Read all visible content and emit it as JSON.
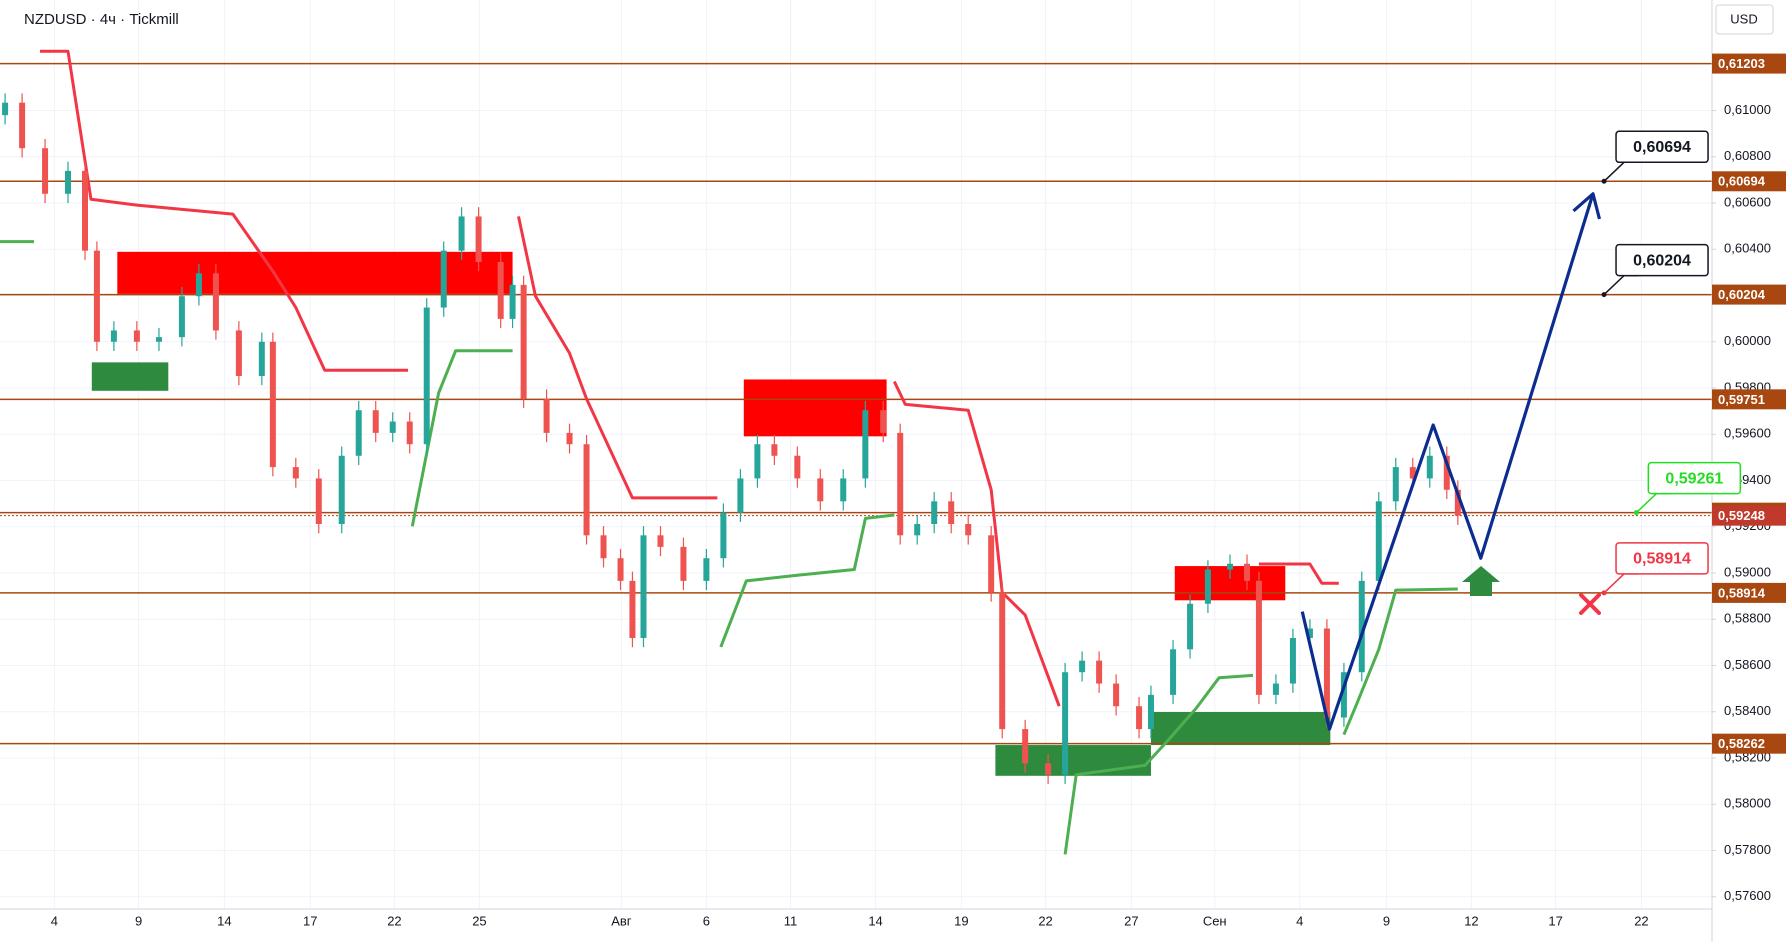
{
  "chart_data": {
    "type": "candlestick",
    "title": "NZDUSD · 4ч · Tickmill",
    "currency": "USD",
    "xlim": [
      -0.64,
      19.5
    ],
    "xticks": [
      {
        "value": 0,
        "label": "4"
      },
      {
        "value": 0.99,
        "label": "9"
      },
      {
        "value": 2,
        "label": "14"
      },
      {
        "value": 3.01,
        "label": "17"
      },
      {
        "value": 4,
        "label": "22"
      },
      {
        "value": 5,
        "label": "25"
      },
      {
        "value": 6.67,
        "label": "Авг"
      },
      {
        "value": 7.67,
        "label": "6"
      },
      {
        "value": 8.66,
        "label": "11"
      },
      {
        "value": 9.66,
        "label": "14"
      },
      {
        "value": 10.67,
        "label": "19"
      },
      {
        "value": 11.66,
        "label": "22"
      },
      {
        "value": 12.67,
        "label": "27"
      },
      {
        "value": 13.65,
        "label": "Сен"
      },
      {
        "value": 14.65,
        "label": "4"
      },
      {
        "value": 15.67,
        "label": "9"
      },
      {
        "value": 16.67,
        "label": "12"
      },
      {
        "value": 17.66,
        "label": "17"
      },
      {
        "value": 18.67,
        "label": "22"
      }
    ],
    "ylim": [
      0.57547,
      0.61478
    ],
    "yticks": [
      {
        "value": 0.576,
        "label": "0,57600"
      },
      {
        "value": 0.578,
        "label": "0,57800"
      },
      {
        "value": 0.58,
        "label": "0,58000"
      },
      {
        "value": 0.582,
        "label": "0,58200"
      },
      {
        "value": 0.584,
        "label": "0,58400"
      },
      {
        "value": 0.586,
        "label": "0,58600"
      },
      {
        "value": 0.588,
        "label": "0,58800"
      },
      {
        "value": 0.59,
        "label": "0,59000"
      },
      {
        "value": 0.592,
        "label": "0,59200"
      },
      {
        "value": 0.594,
        "label": "0,59400"
      },
      {
        "value": 0.596,
        "label": "0,59600"
      },
      {
        "value": 0.598,
        "label": "0,59800"
      },
      {
        "value": 0.6,
        "label": "0,60000"
      },
      {
        "value": 0.602,
        "label": "0,60200"
      },
      {
        "value": 0.604,
        "label": "0,60400"
      },
      {
        "value": 0.606,
        "label": "0,60600"
      },
      {
        "value": 0.608,
        "label": "0,60800"
      },
      {
        "value": 0.61,
        "label": "0,61000"
      }
    ],
    "up_color": "#26a69a",
    "down_color": "#ef5350",
    "candles": {
      "x": [
        -0.58,
        -0.38,
        -0.11,
        0.16,
        0.36,
        0.5,
        0.7,
        0.97,
        1.23,
        1.5,
        1.7,
        1.9,
        2.17,
        2.44,
        2.57,
        2.84,
        3.11,
        3.38,
        3.58,
        3.78,
        3.98,
        4.18,
        4.38,
        4.58,
        4.79,
        4.99,
        5.25,
        5.39,
        5.52,
        5.79,
        6.06,
        6.26,
        6.46,
        6.66,
        6.8,
        6.93,
        7.13,
        7.4,
        7.67,
        7.87,
        8.07,
        8.27,
        8.47,
        8.74,
        9.01,
        9.28,
        9.54,
        9.75,
        9.95,
        10.15,
        10.35,
        10.55,
        10.75,
        11.02,
        11.15,
        11.42,
        11.69,
        11.89,
        12.09,
        12.29,
        12.49,
        12.76,
        12.9,
        13.16,
        13.36,
        13.57,
        13.83,
        14.03,
        14.17,
        14.37,
        14.57,
        14.77,
        14.97,
        15.17,
        15.38,
        15.58,
        15.78,
        15.98,
        16.18,
        16.38,
        16.51
      ],
      "open": [
        0.6098,
        0.61034,
        0.60837,
        0.6064,
        0.60739,
        0.60394,
        0.6,
        0.60049,
        0.6,
        0.6002,
        0.60197,
        0.60296,
        0.60049,
        0.59852,
        0.6,
        0.59458,
        0.59409,
        0.59212,
        0.59507,
        0.59704,
        0.59606,
        0.59655,
        0.59557,
        0.60148,
        0.60394,
        0.60542,
        0.60345,
        0.60099,
        0.60246,
        0.59754,
        0.59606,
        0.59557,
        0.59163,
        0.59064,
        0.58966,
        0.58719,
        0.59163,
        0.59113,
        0.58966,
        0.59064,
        0.59261,
        0.59409,
        0.59557,
        0.59507,
        0.59409,
        0.5931,
        0.59409,
        0.59704,
        0.59606,
        0.59163,
        0.59212,
        0.5931,
        0.59212,
        0.59163,
        0.58916,
        0.58325,
        0.58177,
        0.58128,
        0.58571,
        0.58621,
        0.58522,
        0.58424,
        0.58325,
        0.58473,
        0.5867,
        0.58867,
        0.59015,
        0.5904,
        0.58966,
        0.58473,
        0.58522,
        0.58719,
        0.5876,
        0.58375,
        0.58571,
        0.58966,
        0.5931,
        0.59458,
        0.59409,
        0.59507,
        0.5936
      ],
      "high": [
        0.61074,
        0.61074,
        0.60877,
        0.60779,
        0.60779,
        0.60434,
        0.60089,
        0.60089,
        0.6006,
        0.60237,
        0.60336,
        0.60336,
        0.60089,
        0.6004,
        0.6004,
        0.59498,
        0.59449,
        0.59547,
        0.59744,
        0.59744,
        0.59695,
        0.59695,
        0.60188,
        0.60434,
        0.60582,
        0.60582,
        0.60385,
        0.60286,
        0.60286,
        0.59794,
        0.59646,
        0.59597,
        0.59203,
        0.59104,
        0.59006,
        0.59203,
        0.59203,
        0.59153,
        0.59104,
        0.59301,
        0.59449,
        0.59597,
        0.59597,
        0.59547,
        0.59449,
        0.59449,
        0.59744,
        0.59744,
        0.59646,
        0.59252,
        0.5935,
        0.5935,
        0.59252,
        0.59203,
        0.58956,
        0.58365,
        0.58217,
        0.58611,
        0.58661,
        0.58661,
        0.58562,
        0.58464,
        0.58513,
        0.5871,
        0.58907,
        0.59055,
        0.5908,
        0.5908,
        0.59006,
        0.58562,
        0.58759,
        0.588,
        0.588,
        0.58611,
        0.59006,
        0.5935,
        0.59498,
        0.59498,
        0.59547,
        0.59547,
        0.594
      ],
      "low": [
        0.6094,
        0.60797,
        0.606,
        0.606,
        0.60354,
        0.5996,
        0.5996,
        0.5996,
        0.5996,
        0.5998,
        0.60157,
        0.60009,
        0.59812,
        0.59812,
        0.59418,
        0.59369,
        0.59172,
        0.59172,
        0.59467,
        0.59566,
        0.59566,
        0.59517,
        0.59517,
        0.60108,
        0.60354,
        0.60305,
        0.60059,
        0.60059,
        0.59714,
        0.59566,
        0.59517,
        0.59123,
        0.59024,
        0.58926,
        0.58679,
        0.58679,
        0.59073,
        0.58926,
        0.58926,
        0.59024,
        0.59221,
        0.59369,
        0.59467,
        0.59369,
        0.5927,
        0.5927,
        0.59369,
        0.59566,
        0.59123,
        0.59123,
        0.59172,
        0.59172,
        0.59123,
        0.58876,
        0.58285,
        0.58137,
        0.58088,
        0.58088,
        0.58531,
        0.58482,
        0.58384,
        0.58285,
        0.58285,
        0.58433,
        0.5863,
        0.58827,
        0.58975,
        0.58926,
        0.58433,
        0.58433,
        0.58482,
        0.58679,
        0.58335,
        0.58335,
        0.58531,
        0.58926,
        0.5927,
        0.59369,
        0.59369,
        0.5932,
        0.59208
      ],
      "close": [
        0.61034,
        0.60837,
        0.6064,
        0.60739,
        0.60394,
        0.6,
        0.60049,
        0.6,
        0.6002,
        0.60197,
        0.60296,
        0.60049,
        0.59852,
        0.6,
        0.59458,
        0.59409,
        0.59212,
        0.59507,
        0.59704,
        0.59606,
        0.59655,
        0.59557,
        0.60148,
        0.60394,
        0.60542,
        0.60345,
        0.60099,
        0.60246,
        0.59754,
        0.59606,
        0.59557,
        0.59163,
        0.59064,
        0.58966,
        0.58719,
        0.59163,
        0.59113,
        0.58966,
        0.59064,
        0.59261,
        0.59409,
        0.59557,
        0.59507,
        0.59409,
        0.5931,
        0.59409,
        0.59704,
        0.59606,
        0.59163,
        0.59212,
        0.5931,
        0.59212,
        0.59163,
        0.58916,
        0.58325,
        0.58177,
        0.58128,
        0.58571,
        0.58621,
        0.58522,
        0.58424,
        0.58325,
        0.58473,
        0.5867,
        0.58867,
        0.59015,
        0.5904,
        0.58966,
        0.58473,
        0.58522,
        0.58719,
        0.5876,
        0.58375,
        0.58571,
        0.58966,
        0.5931,
        0.59458,
        0.59409,
        0.59507,
        0.5936,
        0.59248
      ]
    },
    "zones": [
      {
        "x": [
          0.74,
          5.39
        ],
        "y": [
          0.60207,
          0.60389
        ],
        "color": "#ff0000"
      },
      {
        "x": [
          8.11,
          9.79
        ],
        "y": [
          0.59591,
          0.59837
        ],
        "color": "#ff0000"
      },
      {
        "x": [
          13.18,
          14.48
        ],
        "y": [
          0.58882,
          0.5903
        ],
        "color": "#ff0000"
      },
      {
        "x": [
          0.44,
          1.34
        ],
        "y": [
          0.59788,
          0.59911
        ],
        "color": "#2e8b3e"
      },
      {
        "x": [
          11.07,
          12.9
        ],
        "y": [
          0.58123,
          0.58256
        ],
        "color": "#2e8b3e"
      },
      {
        "x": [
          12.9,
          15.01
        ],
        "y": [
          0.58256,
          0.58399
        ],
        "color": "#2e8b3e"
      }
    ],
    "trend_lines": [
      {
        "color": "#f23645",
        "x": [
          -0.17,
          0.16,
          0.43,
          0.97,
          2.1,
          2.57,
          2.84,
          3.18,
          4.16,
          null,
          5.46,
          5.66,
          6.06,
          6.26,
          6.8,
          7.8,
          null,
          9.88,
          10.01,
          10.75,
          11.02,
          11.15,
          11.42,
          11.82,
          null,
          14.17,
          14.77,
          14.91,
          15.11
        ],
        "y": [
          0.61256,
          0.61256,
          0.60616,
          0.60591,
          0.60552,
          0.60305,
          0.60148,
          0.59877,
          0.59877,
          null,
          0.60542,
          0.60197,
          0.59951,
          0.59754,
          0.59325,
          0.59325,
          null,
          0.59828,
          0.59729,
          0.59704,
          0.5936,
          0.58916,
          0.58818,
          0.58424,
          null,
          0.59039,
          0.59039,
          0.58956,
          0.58956
        ]
      },
      {
        "color": "#4caf50",
        "x": [
          -0.64,
          -0.24,
          null,
          4.21,
          4.52,
          4.72,
          5.39,
          null,
          7.84,
          8.14,
          8.74,
          9.41,
          9.54,
          9.88,
          null,
          11.89,
          12.02,
          12.83,
          13.1,
          13.43,
          13.7,
          14.1,
          null,
          15.17,
          15.31,
          15.58,
          15.78,
          16.51
        ],
        "y": [
          0.60433,
          0.60433,
          null,
          0.59202,
          0.59778,
          0.59961,
          0.59961,
          null,
          0.5868,
          0.58966,
          0.5899,
          0.59015,
          0.59236,
          0.59251,
          null,
          0.57783,
          0.58128,
          0.58168,
          0.58276,
          0.58414,
          0.58547,
          0.58557,
          null,
          0.58301,
          0.58424,
          0.5867,
          0.58926,
          0.58931
        ]
      }
    ],
    "levels": [
      {
        "value": 0.61203,
        "label": "0,61203",
        "color": "#a8470f"
      },
      {
        "value": 0.60694,
        "label": "0,60694",
        "color": "#a8470f"
      },
      {
        "value": 0.60204,
        "label": "0,60204",
        "color": "#a8470f"
      },
      {
        "value": 0.59751,
        "label": "0,59751",
        "color": "#a8470f"
      },
      {
        "value": 0.59261,
        "label": "0,59261",
        "color": "#a8470f"
      },
      {
        "value": 0.59248,
        "label": "0,59248",
        "color": "#c0392b",
        "dashed": true
      },
      {
        "value": 0.58914,
        "label": "0,58914",
        "color": "#a8470f"
      },
      {
        "value": 0.58262,
        "label": "0,58262",
        "color": "#a8470f"
      }
    ],
    "forecast": {
      "color": "#0d2c8f",
      "x": [
        14.68,
        15.0,
        16.22,
        16.78,
        18.1
      ],
      "y": [
        0.58833,
        0.58325,
        0.5964,
        0.59064,
        0.6064
      ]
    },
    "callouts": [
      {
        "value": 0.60694,
        "label": "0,60694",
        "x": 18.23,
        "color": "#131722"
      },
      {
        "value": 0.60204,
        "label": "0,60204",
        "x": 18.23,
        "color": "#131722"
      },
      {
        "value": 0.59261,
        "label": "0,59261",
        "x": 18.61,
        "color": "#22dd22"
      },
      {
        "value": 0.58914,
        "label": "0,58914",
        "x": 18.23,
        "color": "#f23645"
      }
    ]
  }
}
